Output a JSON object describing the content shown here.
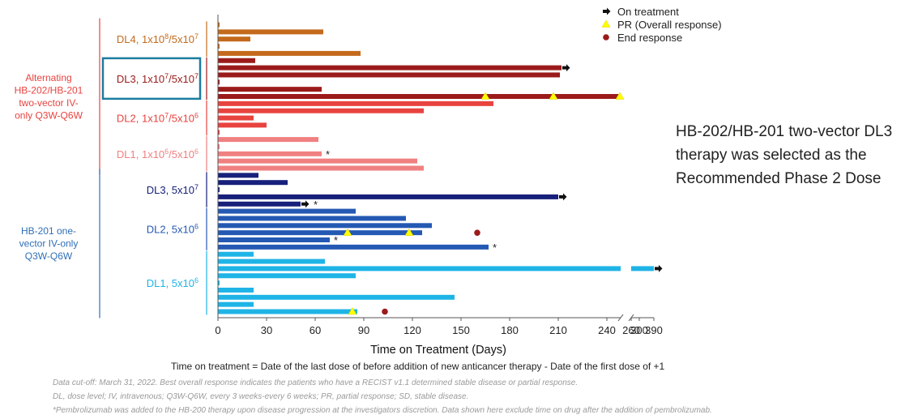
{
  "chart_data": {
    "type": "bar",
    "orientation": "horizontal",
    "title": "",
    "xlabel": "Time on Treatment (Days)",
    "definition": "Time on treatment = Date of the last dose of before addition of new anticancer therapy - Date of the first dose of +1",
    "x_ticks": [
      "0",
      "30",
      "60",
      "90",
      "120",
      "150",
      "180",
      "210",
      "240",
      "260",
      "300",
      "390"
    ],
    "axis_break": {
      "between": [
        "240",
        "260"
      ]
    },
    "legend": {
      "placement": "top-right",
      "items": [
        {
          "key": "on_treatment",
          "label": "On treatment",
          "marker": "arrow",
          "color": "#111111"
        },
        {
          "key": "pr",
          "label": "PR (Overall response)",
          "marker": "triangle",
          "color": "#ffff00"
        },
        {
          "key": "end",
          "label": "End response",
          "marker": "circle",
          "color": "#9b1b1b"
        }
      ]
    },
    "arm_groups": [
      {
        "label": "Alternating HB-202/HB-201 two-vector IV-only Q3W-Q6W",
        "lines": [
          "Alternating",
          "HB-202/HB-201",
          "two-vector  IV-",
          "only  Q3W-Q6W"
        ],
        "color": "#e8433f"
      },
      {
        "label": "HB-201 one-vector IV-only Q3W-Q6W",
        "lines": [
          "HB-201  one-",
          "vector  IV-only",
          "Q3W-Q6W"
        ],
        "color": "#2f6fb5"
      }
    ],
    "dose_levels": [
      {
        "label": "DL4, 1x10⁸/5x10⁷",
        "base": "DL4, 1x10",
        "sup1": "8",
        "mid": "/5x10",
        "sup2": "7",
        "color": "#c46a1c",
        "highlight": false
      },
      {
        "label": "DL3, 1x10⁷/5x10⁷",
        "base": "DL3, 1x10",
        "sup1": "7",
        "mid": "/5x10",
        "sup2": "7",
        "color": "#9b1b1b",
        "highlight": true
      },
      {
        "label": "DL2, 1x10⁷/5x10⁶",
        "base": "DL2, 1x10",
        "sup1": "7",
        "mid": "/5x10",
        "sup2": "6",
        "color": "#e8433f",
        "highlight": false
      },
      {
        "label": "DL1, 1x10⁶/5x10⁶",
        "base": "DL1, 1x10",
        "sup1": "6",
        "mid": "/5x10",
        "sup2": "6",
        "color": "#f08080",
        "highlight": false
      },
      {
        "label": "DL3, 5x10⁷",
        "base": "DL3, 5x10",
        "sup1": "7",
        "mid": "",
        "sup2": "",
        "color": "#17207a",
        "highlight": false
      },
      {
        "label": "DL2, 5x10⁶",
        "base": "DL2, 5x10",
        "sup1": "6",
        "mid": "",
        "sup2": "",
        "color": "#2459b3",
        "highlight": false
      },
      {
        "label": "DL1, 5x10⁶",
        "base": "DL1, 5x10",
        "sup1": "6",
        "mid": "",
        "sup2": "",
        "color": "#1fb4e6",
        "highlight": false
      }
    ],
    "patients": [
      {
        "dl": 0,
        "days": 1
      },
      {
        "dl": 0,
        "days": 65
      },
      {
        "dl": 0,
        "days": 20
      },
      {
        "dl": 0,
        "days": 1
      },
      {
        "dl": 0,
        "days": 88
      },
      {
        "dl": 1,
        "days": 23
      },
      {
        "dl": 1,
        "days": 212,
        "on_treatment": true
      },
      {
        "dl": 1,
        "days": 211
      },
      {
        "dl": 1,
        "days": 1
      },
      {
        "dl": 1,
        "days": 64
      },
      {
        "dl": 1,
        "days": 253,
        "pr": [
          165,
          207,
          248
        ]
      },
      {
        "dl": 2,
        "days": 170
      },
      {
        "dl": 2,
        "days": 127
      },
      {
        "dl": 2,
        "days": 22
      },
      {
        "dl": 2,
        "days": 30
      },
      {
        "dl": 2,
        "days": 1
      },
      {
        "dl": 3,
        "days": 62
      },
      {
        "dl": 3,
        "days": 1
      },
      {
        "dl": 3,
        "days": 64,
        "pembro": true
      },
      {
        "dl": 3,
        "days": 123
      },
      {
        "dl": 3,
        "days": 127
      },
      {
        "dl": 4,
        "days": 25
      },
      {
        "dl": 4,
        "days": 43
      },
      {
        "dl": 4,
        "days": 1
      },
      {
        "dl": 4,
        "days": 210,
        "on_treatment": true
      },
      {
        "dl": 4,
        "days": 51,
        "on_treatment": true,
        "pembro": true
      },
      {
        "dl": 5,
        "days": 85
      },
      {
        "dl": 5,
        "days": 116
      },
      {
        "dl": 5,
        "days": 132
      },
      {
        "dl": 5,
        "days": 126,
        "pr": [
          80,
          118
        ],
        "end": [
          160
        ]
      },
      {
        "dl": 5,
        "days": 69,
        "pembro": true
      },
      {
        "dl": 5,
        "days": 167,
        "pembro": true
      },
      {
        "dl": 6,
        "days": 22
      },
      {
        "dl": 6,
        "days": 66
      },
      {
        "dl": 6,
        "days": 390,
        "on_treatment": true
      },
      {
        "dl": 6,
        "days": 85
      },
      {
        "dl": 6,
        "days": 1
      },
      {
        "dl": 6,
        "days": 22
      },
      {
        "dl": 6,
        "days": 146
      },
      {
        "dl": 6,
        "days": 22
      },
      {
        "dl": 6,
        "days": 86,
        "pr": [
          83
        ],
        "end": [
          103
        ]
      }
    ]
  },
  "callout": "HB-202/HB-201 two-vector DL3 therapy was selected as the Recommended Phase 2 Dose",
  "footnotes": [
    "Data cut-off: March 31, 2022. Best overall response indicates the patients who  have a RECIST v1.1 determined stable disease or partial response.",
    "DL, dose level; IV, intravenous; Q3W-Q6W, every 3 weeks-every 6 weeks; PR, partial response; SD, stable disease.",
    "*Pembrolizumab was added to the HB-200 therapy upon disease progression at the investigators discretion. Data shown here exclude time on drug after the addition of pembrolizumab."
  ],
  "pembro_marker": "*"
}
